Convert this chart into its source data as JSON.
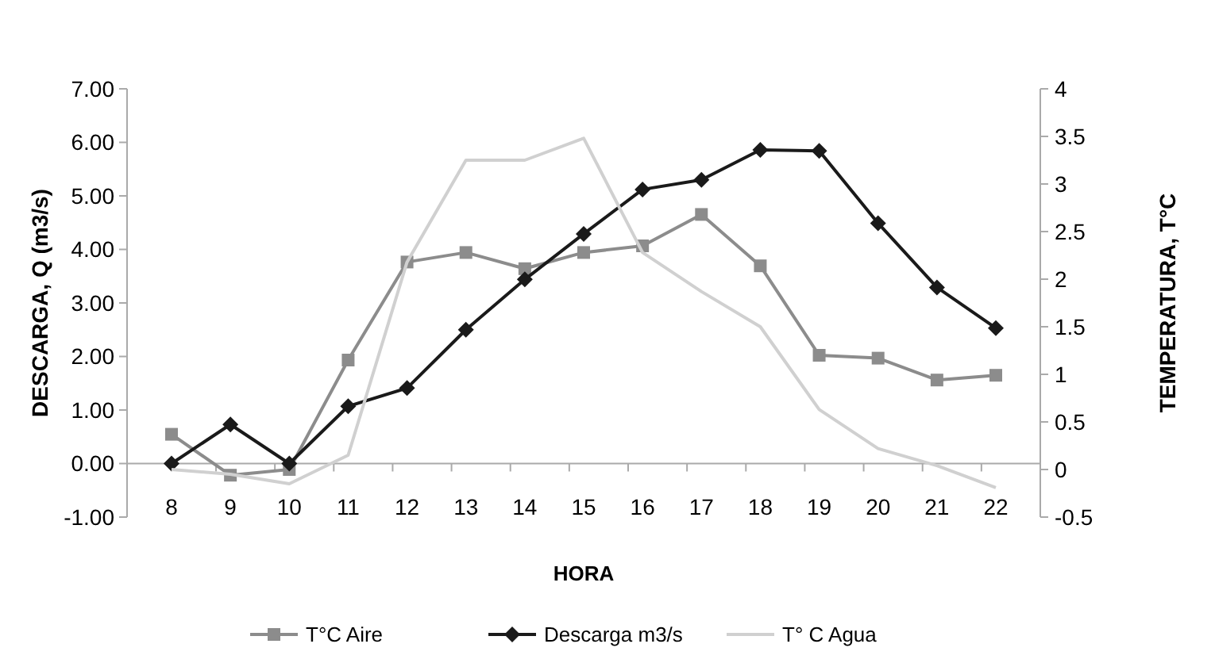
{
  "chart_data": {
    "type": "line",
    "xlabel": "HORA",
    "ylabel": "DESCARGA, Q (m3/s)",
    "y2label": "TEMPERATURA, T°C",
    "categories": [
      "8",
      "9",
      "10",
      "11",
      "12",
      "13",
      "14",
      "15",
      "16",
      "17",
      "18",
      "19",
      "20",
      "21",
      "22"
    ],
    "ylim": [
      -1,
      7
    ],
    "yticks": [
      {
        "value": -1,
        "label": "-1.00"
      },
      {
        "value": 0,
        "label": "0.00"
      },
      {
        "value": 1,
        "label": "1.00"
      },
      {
        "value": 2,
        "label": "2.00"
      },
      {
        "value": 3,
        "label": "3.00"
      },
      {
        "value": 4,
        "label": "4.00"
      },
      {
        "value": 5,
        "label": "5.00"
      },
      {
        "value": 6,
        "label": "6.00"
      },
      {
        "value": 7,
        "label": "7.00"
      }
    ],
    "y2lim": [
      -0.5,
      4
    ],
    "y2ticks": [
      -0.5,
      0,
      0.5,
      1,
      1.5,
      2,
      2.5,
      3,
      3.5,
      4
    ],
    "grid": false,
    "legend": "bottom",
    "series": [
      {
        "name": "T°C Aire",
        "color": "#8c8c8c",
        "marker": "square",
        "axis": "y2",
        "values": [
          0.37,
          -0.06,
          0,
          1.15,
          2.18,
          2.28,
          2.11,
          2.28,
          2.35,
          2.68,
          2.14,
          1.2,
          1.17,
          0.94,
          0.99
        ]
      },
      {
        "name": "Descarga m3/s",
        "color": "#1a1a1a",
        "marker": "diamond",
        "values": [
          0,
          0.73,
          0,
          1.07,
          1.41,
          2.5,
          3.44,
          4.29,
          5.12,
          5.3,
          5.86,
          5.84,
          4.49,
          3.29,
          2.53
        ]
      },
      {
        "name": "T° C Agua",
        "color": "#d0d0d0",
        "marker": "none",
        "axis": "y2",
        "values": [
          0,
          -0.05,
          -0.15,
          0.15,
          2.18,
          3.25,
          3.25,
          3.48,
          2.28,
          1.87,
          1.5,
          0.63,
          0.22,
          0.04,
          -0.19
        ]
      }
    ]
  }
}
